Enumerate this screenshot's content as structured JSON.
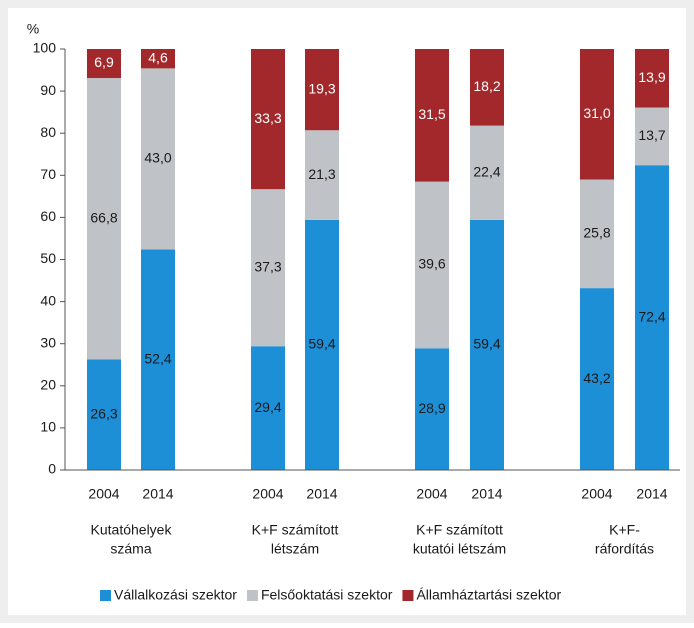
{
  "chart_data": {
    "type": "stacked_bar",
    "y_unit": "%",
    "categories": [
      "2004",
      "2014",
      "2004",
      "2014",
      "2004",
      "2014",
      "2004",
      "2014"
    ],
    "groups": [
      [
        "Kutatóhelyek",
        "száma"
      ],
      [
        "K+F számított",
        "létszám"
      ],
      [
        "K+F számított",
        "kutatói létszám"
      ],
      [
        "K+F-",
        "ráfordítás"
      ]
    ],
    "series": [
      {
        "name": "Vállalkozási szektor",
        "color": "#1c8fd6",
        "values": [
          26.3,
          52.4,
          29.4,
          59.4,
          28.9,
          59.4,
          43.2,
          72.4
        ],
        "value_labels": [
          "26,3",
          "52,4",
          "29,4",
          "59,4",
          "28,9",
          "59,4",
          "43,2",
          "72,4"
        ]
      },
      {
        "name": "Felsőoktatási szektor",
        "color": "#bfc3c7",
        "values": [
          66.8,
          43.0,
          37.3,
          21.3,
          39.6,
          22.4,
          25.8,
          13.7
        ],
        "value_labels": [
          "66,8",
          "43,0",
          "37,3",
          "21,3",
          "39,6",
          "22,4",
          "25,8",
          "13,7"
        ]
      },
      {
        "name": "Államháztartási szektor",
        "color": "#a3282b",
        "values": [
          6.9,
          4.6,
          33.3,
          19.3,
          31.5,
          18.2,
          31.0,
          13.9
        ],
        "value_labels": [
          "6,9",
          "4,6",
          "33,3",
          "19,3",
          "31,5",
          "18,2",
          "31,0",
          "13,9"
        ]
      }
    ],
    "ylim": [
      0,
      100
    ],
    "yticks": [
      0,
      10,
      20,
      30,
      40,
      50,
      60,
      70,
      80,
      90,
      100
    ],
    "grid": false
  }
}
